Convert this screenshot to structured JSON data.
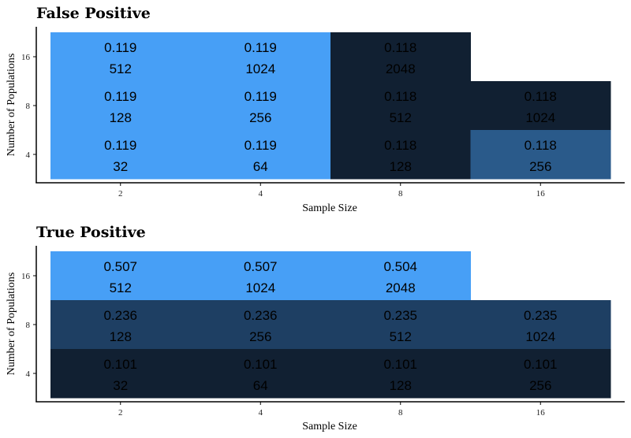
{
  "chart_data": [
    {
      "type": "heatmap",
      "title": "False Positive",
      "xlabel": "Sample Size",
      "ylabel": "Number of Populations",
      "x_categories": [
        "2",
        "4",
        "8",
        "16"
      ],
      "y_categories": [
        "4",
        "8",
        "16"
      ],
      "legend": "none",
      "grid": false,
      "cells": [
        {
          "x": "2",
          "y": "16",
          "value": "0.119",
          "count": "512",
          "color": "#479ff6"
        },
        {
          "x": "4",
          "y": "16",
          "value": "0.119",
          "count": "1024",
          "color": "#479ff6"
        },
        {
          "x": "8",
          "y": "16",
          "value": "0.118",
          "count": "2048",
          "color": "#112032"
        },
        {
          "x": "2",
          "y": "8",
          "value": "0.119",
          "count": "128",
          "color": "#479ff6"
        },
        {
          "x": "4",
          "y": "8",
          "value": "0.119",
          "count": "256",
          "color": "#479ff6"
        },
        {
          "x": "8",
          "y": "8",
          "value": "0.118",
          "count": "512",
          "color": "#112032"
        },
        {
          "x": "16",
          "y": "8",
          "value": "0.118",
          "count": "1024",
          "color": "#112032"
        },
        {
          "x": "2",
          "y": "4",
          "value": "0.119",
          "count": "32",
          "color": "#479ff6"
        },
        {
          "x": "4",
          "y": "4",
          "value": "0.119",
          "count": "64",
          "color": "#479ff6"
        },
        {
          "x": "8",
          "y": "4",
          "value": "0.118",
          "count": "128",
          "color": "#112032"
        },
        {
          "x": "16",
          "y": "4",
          "value": "0.118",
          "count": "256",
          "color": "#2a5a8a"
        }
      ]
    },
    {
      "type": "heatmap",
      "title": "True Positive",
      "xlabel": "Sample Size",
      "ylabel": "Number of Populations",
      "x_categories": [
        "2",
        "4",
        "8",
        "16"
      ],
      "y_categories": [
        "4",
        "8",
        "16"
      ],
      "legend": "none",
      "grid": false,
      "cells": [
        {
          "x": "2",
          "y": "16",
          "value": "0.507",
          "count": "512",
          "color": "#479ff6"
        },
        {
          "x": "4",
          "y": "16",
          "value": "0.507",
          "count": "1024",
          "color": "#479ff6"
        },
        {
          "x": "8",
          "y": "16",
          "value": "0.504",
          "count": "2048",
          "color": "#479ff6"
        },
        {
          "x": "2",
          "y": "8",
          "value": "0.236",
          "count": "128",
          "color": "#1e3f63"
        },
        {
          "x": "4",
          "y": "8",
          "value": "0.236",
          "count": "256",
          "color": "#1e3f63"
        },
        {
          "x": "8",
          "y": "8",
          "value": "0.235",
          "count": "512",
          "color": "#1e3f63"
        },
        {
          "x": "16",
          "y": "8",
          "value": "0.235",
          "count": "1024",
          "color": "#1e3f63"
        },
        {
          "x": "2",
          "y": "4",
          "value": "0.101",
          "count": "32",
          "color": "#112032"
        },
        {
          "x": "4",
          "y": "4",
          "value": "0.101",
          "count": "64",
          "color": "#112032"
        },
        {
          "x": "8",
          "y": "4",
          "value": "0.101",
          "count": "128",
          "color": "#112032"
        },
        {
          "x": "16",
          "y": "4",
          "value": "0.101",
          "count": "256",
          "color": "#112032"
        }
      ]
    }
  ]
}
